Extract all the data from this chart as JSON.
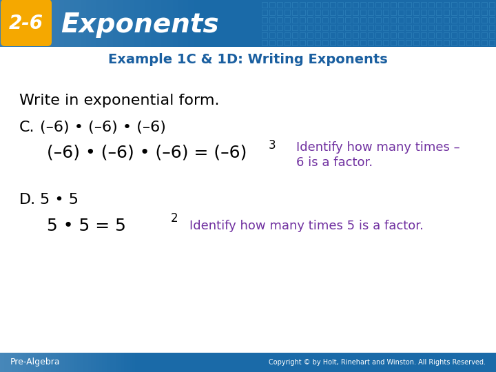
{
  "bg_color": "#ffffff",
  "header_bg": "#1a6aa8",
  "header_pattern_color": "#2a7ac0",
  "badge_bg": "#f5a800",
  "badge_text": "2-6",
  "badge_text_color": "#ffffff",
  "header_title": "Exponents",
  "header_title_color": "#ffffff",
  "subtitle_text": "Example 1C & 1D: Writing Exponents",
  "subtitle_color": "#1a5fa0",
  "body_bg": "#ffffff",
  "instruction_text": "Write in exponential form.",
  "instruction_color": "#000000",
  "c_label": "C.",
  "c_problem": "(–6) • (–6) • (–6)",
  "c_solution_left": "(–6) • (–6) • (–6) = (–6)",
  "c_exponent": "3",
  "c_explain_line1": "Identify how many times –",
  "c_explain_line2": "6 is a factor.",
  "explain_color": "#7030a0",
  "d_label": "D.",
  "d_problem": "5 • 5",
  "d_solution_left": "5 • 5 = 5",
  "d_exponent": "2",
  "d_explain": "Identify how many times 5 is a factor.",
  "footer_text": "Pre-Algebra",
  "footer_text_color": "#ffffff",
  "copyright_text": "Copyright © by Holt, Rinehart and Winston. All Rights Reserved.",
  "copyright_color": "#ffffff",
  "footer_bg": "#1a6aa8"
}
